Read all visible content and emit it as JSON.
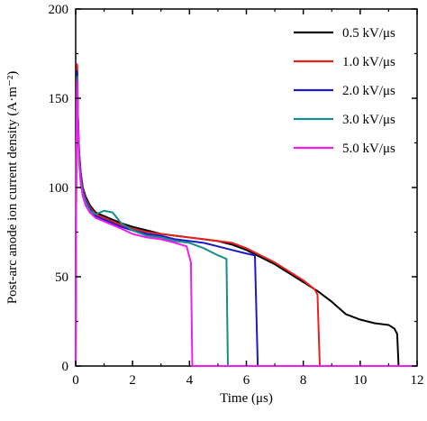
{
  "chart_data": {
    "type": "line",
    "xlabel": "Time (μs)",
    "ylabel": "Post-arc anode ion current density (A·m⁻²)",
    "xlim": [
      0,
      12
    ],
    "ylim": [
      0,
      200
    ],
    "xticks": [
      "0",
      "2",
      "4",
      "6",
      "8",
      "10",
      "12"
    ],
    "yticks": [
      "0",
      "50",
      "100",
      "150",
      "200"
    ],
    "grid": false,
    "legend_position": "top-right",
    "series": [
      {
        "name": "0.5 kV/μs",
        "color": "#000000",
        "x": [
          0,
          0.02,
          0.05,
          0.08,
          0.12,
          0.18,
          0.25,
          0.35,
          0.5,
          0.7,
          1.0,
          1.3,
          1.6,
          2.0,
          2.5,
          3.0,
          3.5,
          4.0,
          4.5,
          5.0,
          5.5,
          6.0,
          6.5,
          7.0,
          7.5,
          8.0,
          8.5,
          9.0,
          9.5,
          10.0,
          10.5,
          11.0,
          11.2,
          11.3,
          11.35,
          12.0
        ],
        "y": [
          0,
          110,
          168,
          140,
          120,
          108,
          100,
          95,
          90,
          86,
          84,
          82,
          80,
          78,
          76,
          74,
          73,
          72,
          71,
          70,
          68,
          65,
          61,
          57,
          52,
          47,
          42,
          36,
          29,
          26,
          24,
          23,
          21,
          18,
          0,
          0
        ]
      },
      {
        "name": "1.0 kV/μs",
        "color": "#e8201e",
        "x": [
          0,
          0.02,
          0.05,
          0.08,
          0.12,
          0.18,
          0.25,
          0.35,
          0.5,
          0.7,
          1.0,
          1.3,
          1.6,
          2.0,
          2.5,
          3.0,
          3.5,
          4.0,
          4.5,
          5.0,
          5.5,
          6.0,
          6.5,
          7.0,
          7.5,
          8.0,
          8.4,
          8.5,
          8.58,
          12.0
        ],
        "y": [
          0,
          110,
          169,
          140,
          120,
          107,
          99,
          94,
          89,
          85,
          83,
          81,
          79,
          77,
          75,
          74,
          73,
          72,
          71,
          70,
          69,
          66,
          62,
          58,
          53,
          48,
          43,
          40,
          0,
          0
        ]
      },
      {
        "name": "2.0 kV/μs",
        "color": "#1a1ac8",
        "x": [
          0,
          0.02,
          0.05,
          0.08,
          0.12,
          0.18,
          0.25,
          0.35,
          0.5,
          0.7,
          1.0,
          1.3,
          1.6,
          2.0,
          2.5,
          3.0,
          3.5,
          4.0,
          4.5,
          5.0,
          5.5,
          6.0,
          6.3,
          6.4,
          12.0
        ],
        "y": [
          0,
          110,
          165,
          138,
          118,
          106,
          98,
          93,
          88,
          84,
          82,
          80,
          78,
          76,
          74,
          73,
          71,
          70,
          69,
          67,
          65,
          63,
          62,
          0,
          0
        ]
      },
      {
        "name": "3.0 kV/μs",
        "color": "#1b8a8a",
        "x": [
          0,
          0.02,
          0.05,
          0.08,
          0.12,
          0.18,
          0.25,
          0.35,
          0.5,
          0.7,
          1.0,
          1.3,
          1.6,
          2.0,
          2.5,
          3.0,
          3.5,
          4.0,
          4.5,
          5.0,
          5.3,
          5.35,
          12.0
        ],
        "y": [
          0,
          108,
          162,
          136,
          116,
          104,
          97,
          92,
          87,
          85,
          87,
          86,
          80,
          76,
          73,
          72,
          70,
          69,
          66,
          62,
          60,
          0,
          0
        ]
      },
      {
        "name": "5.0 kV/μs",
        "color": "#f21cf2",
        "x": [
          0,
          0.02,
          0.05,
          0.08,
          0.12,
          0.18,
          0.25,
          0.35,
          0.5,
          0.7,
          1.0,
          1.3,
          1.6,
          2.0,
          2.5,
          3.0,
          3.5,
          3.9,
          4.05,
          4.1,
          12.0
        ],
        "y": [
          0,
          106,
          160,
          134,
          114,
          102,
          95,
          90,
          86,
          83,
          81,
          79,
          77,
          74,
          72,
          71,
          69,
          67,
          58,
          0,
          0
        ]
      }
    ]
  }
}
